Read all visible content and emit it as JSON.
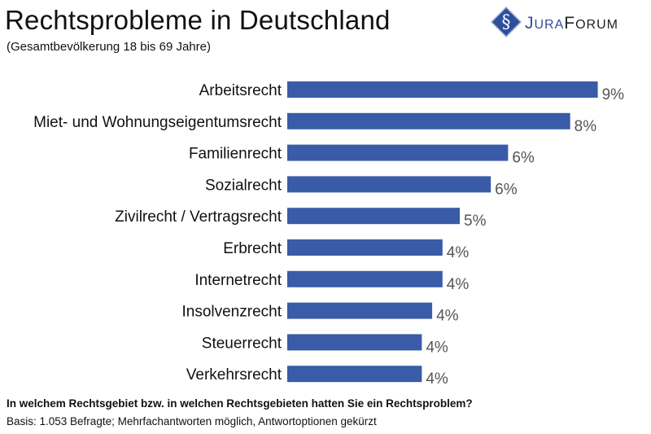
{
  "logo_text": "JuraForum",
  "colors": {
    "bar": "#3a5ba8",
    "logo_blue": "#2e4f9c",
    "value_label": "#555555"
  },
  "chart_data": {
    "type": "bar",
    "orientation": "horizontal",
    "title": "Rechtsprobleme in Deutschland",
    "subtitle": "(Gesamtbevölkerung 18 bis 69 Jahre)",
    "categories": [
      "Arbeitsrecht",
      "Miet- und Wohnungseigentumsrecht",
      "Familienrecht",
      "Sozialrecht",
      "Zivilrecht / Vertragsrecht",
      "Erbrecht",
      "Internetrecht",
      "Insolvenzrecht",
      "Steuerrecht",
      "Verkehrsrecht"
    ],
    "values": [
      9.0,
      8.2,
      6.4,
      5.9,
      5.0,
      4.5,
      4.5,
      4.2,
      3.9,
      3.9
    ],
    "data_labels": [
      "9%",
      "8%",
      "6%",
      "6%",
      "5%",
      "4%",
      "4%",
      "4%",
      "4%",
      "4%"
    ],
    "unit": "%",
    "grid": false,
    "legend": "none"
  },
  "footer": {
    "question": "In welchem Rechtsgebiet bzw. in welchen Rechtsgebieten hatten Sie ein Rechtsproblem?",
    "basis": "Basis: 1.053 Befragte; Mehrfachantworten möglich, Antwortoptionen gekürzt"
  }
}
